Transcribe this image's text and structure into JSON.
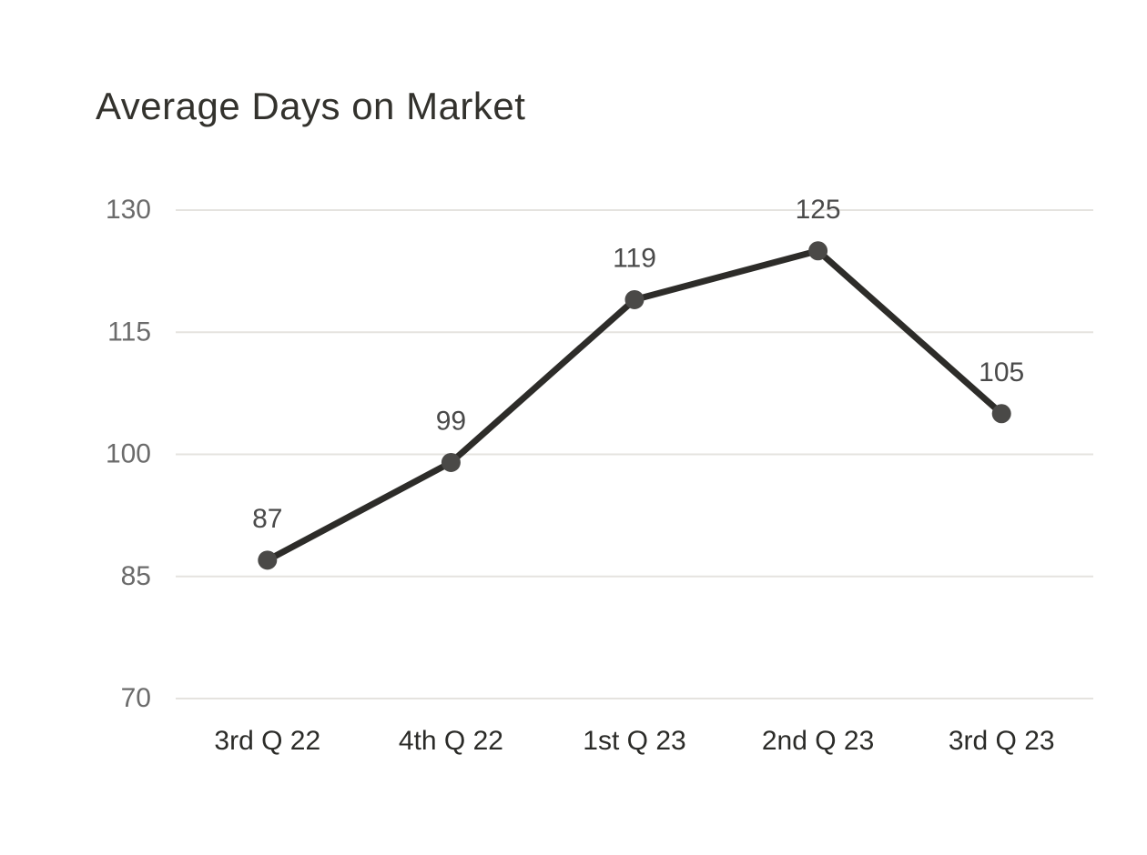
{
  "page": {
    "background": "#ffffff"
  },
  "chart_data": {
    "type": "line",
    "title": "Average Days on Market",
    "categories": [
      "3rd Q 22",
      "4th Q 22",
      "1st Q 23",
      "2nd Q 23",
      "3rd Q 23"
    ],
    "values": [
      87,
      99,
      119,
      125,
      105
    ],
    "data_labels": [
      "87",
      "99",
      "119",
      "125",
      "105"
    ],
    "y_ticks": [
      130,
      115,
      100,
      85,
      70
    ],
    "ylim": [
      70,
      130
    ],
    "xlabel": "",
    "ylabel": "",
    "legend": "none",
    "grid": "horizontal",
    "colors": {
      "line": "#2d2c29",
      "marker": "#4a4947",
      "gridline": "#e5e3df",
      "title": "#33322d",
      "y_tick_label": "#6b6b6b",
      "x_tick_label": "#2b2b28",
      "data_label": "#4a4a4a"
    }
  }
}
